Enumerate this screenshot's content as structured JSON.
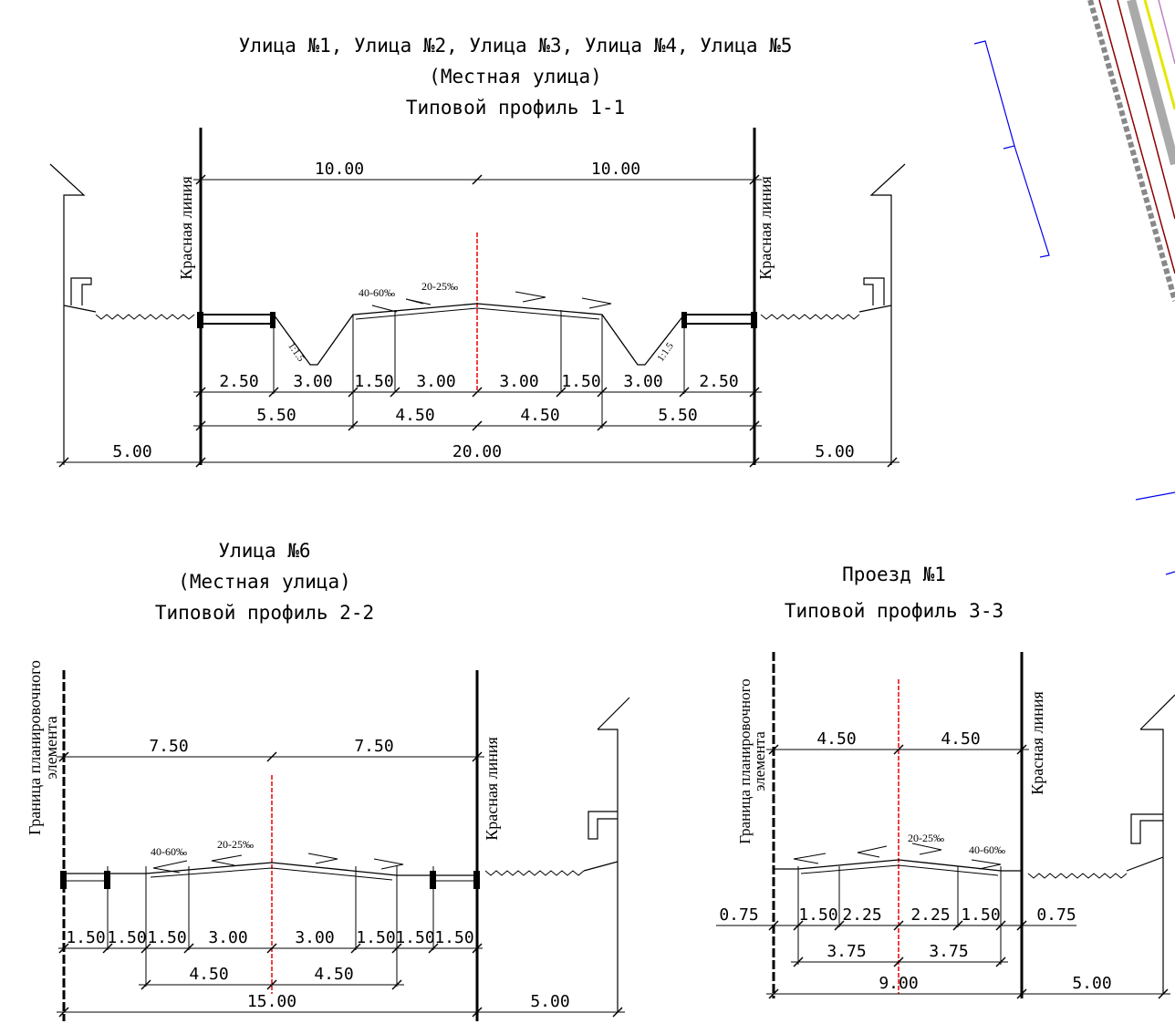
{
  "profiles": [
    {
      "title": [
        "Улица №1, Улица №2, Улица №3, Улица №4, Улица №5",
        "(Местная улица)",
        "Типовой профиль 1-1"
      ],
      "left_label": [
        "Красная линия"
      ],
      "right_label": [
        "Красная линия"
      ],
      "slopes": [
        "40-60‰",
        "20-25‰",
        "1:1.5",
        "1:1.5"
      ],
      "dims": [
        [
          "10.00",
          "10.00"
        ],
        [
          "2.50",
          "3.00",
          "1.50",
          "3.00",
          "3.00",
          "1.50",
          "3.00",
          "2.50"
        ],
        [
          "5.50",
          "4.50",
          "4.50",
          "5.50"
        ],
        [
          "5.00",
          "20.00",
          "5.00"
        ]
      ]
    },
    {
      "title": [
        "Улица №6",
        "(Местная улица)",
        "Типовой профиль 2-2"
      ],
      "left_label": [
        "Граница планировочного",
        "элемента"
      ],
      "right_label": [
        "Красная линия"
      ],
      "slopes": [
        "40-60‰",
        "20-25‰"
      ],
      "dims": [
        [
          "7.50",
          "7.50"
        ],
        [
          "1.50",
          "1.50",
          "1.50",
          "3.00",
          "3.00",
          "1.50",
          "1.50",
          "1.50"
        ],
        [
          "4.50",
          "4.50"
        ],
        [
          "15.00",
          "5.00"
        ]
      ]
    },
    {
      "title": [
        "Проезд №1",
        "Типовой профиль 3-3"
      ],
      "left_label": [
        "Граница планировочного",
        "элемента"
      ],
      "right_label": [
        "Красная линия"
      ],
      "slopes": [
        "20-25‰",
        "40-60‰"
      ],
      "dims": [
        [
          "4.50",
          "4.50"
        ],
        [
          "0.75",
          "1.50",
          "2.25",
          "2.25",
          "1.50",
          "0.75"
        ],
        [
          "3.75",
          "3.75"
        ],
        [
          "9.00",
          "5.00"
        ]
      ]
    }
  ]
}
